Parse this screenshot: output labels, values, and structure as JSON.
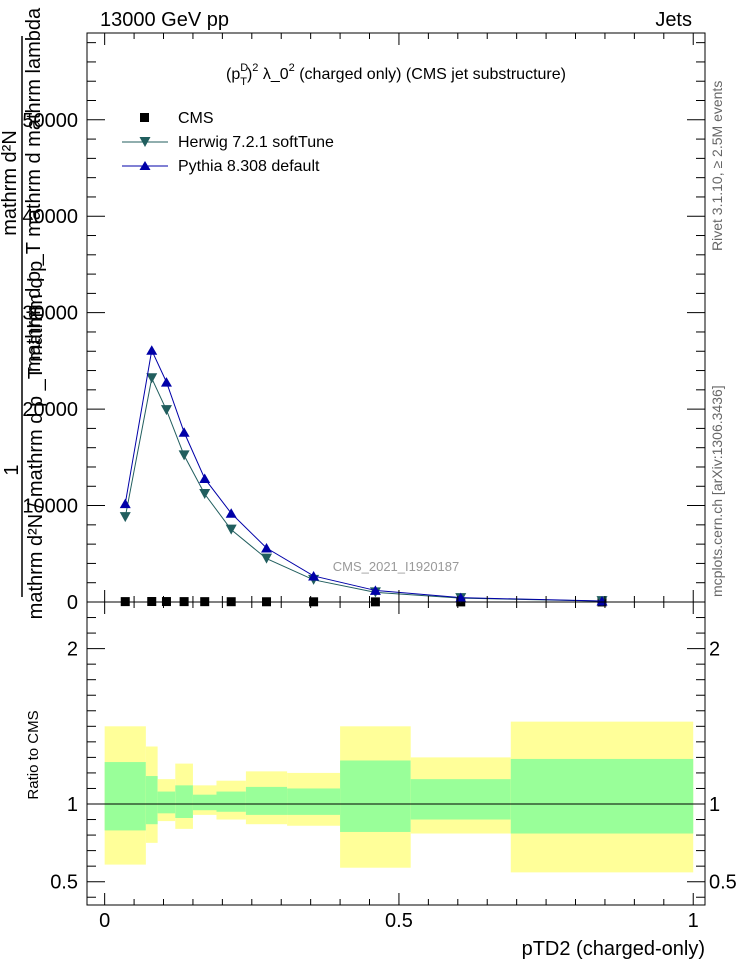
{
  "header": {
    "left": "13000 GeV pp",
    "right": "Jets"
  },
  "side_labels": {
    "rivet": "Rivet 3.1.10, ≥ 2.5M events",
    "mcplots": "mcplots.cern.ch [arXiv:1306.3436]"
  },
  "chart_data": {
    "type": "line",
    "title": "(p_T^D)^2 λ_0^2 (charged only) (CMS jet substructure)",
    "title_parts": {
      "open": "(p",
      "sup": "D",
      "sub": "T",
      "close": ")",
      "sup2": "2",
      "lambda": " λ_0",
      "sup3": "2",
      "rest": " (charged only) (CMS jet substructure)"
    },
    "analysis_label": "CMS_2021_I1920187",
    "xlabel": "pTD2 (charged-only)",
    "ylabel": {
      "one": "1",
      "denominator": "mathrm d²N / mathrm d p _T mathrm d p",
      "numerator": "mathrm d²N",
      "numerator2": "mathrm d p _T mathrm d mathrm lambda"
    },
    "ratio_ylabel": "Ratio to CMS",
    "xlim": [
      -0.03,
      1.02
    ],
    "ylim": [
      0,
      59000
    ],
    "ratio_ylim": [
      0.35,
      2.3
    ],
    "xticks": [
      0,
      0.5,
      1
    ],
    "xtick_labels": [
      "0",
      "0.5",
      "1"
    ],
    "yticks": [
      0,
      10000,
      20000,
      30000,
      40000,
      50000
    ],
    "ytick_labels": [
      "0",
      "10000",
      "20000",
      "30000",
      "40000",
      "50000"
    ],
    "ratio_yticks": [
      0.5,
      1,
      2
    ],
    "ratio_ytick_labels": [
      "0.5",
      "1",
      "2"
    ],
    "legend": {
      "position": "top-left",
      "entries": [
        "CMS",
        "Herwig 7.2.1 softTune",
        "Pythia 8.308 default"
      ]
    },
    "series": [
      {
        "name": "CMS",
        "color": "#000000",
        "marker": "square",
        "x": [
          0.035,
          0.08,
          0.105,
          0.135,
          0.17,
          0.215,
          0.275,
          0.355,
          0.46,
          0.605,
          0.845
        ],
        "y": [
          40,
          50,
          45,
          40,
          35,
          30,
          25,
          20,
          15,
          10,
          5
        ]
      },
      {
        "name": "Herwig 7.2.1 softTune",
        "color": "#215e5e",
        "marker": "triangle-down",
        "x": [
          0.035,
          0.08,
          0.105,
          0.135,
          0.17,
          0.215,
          0.275,
          0.355,
          0.46,
          0.605,
          0.845
        ],
        "y": [
          8800,
          23200,
          19900,
          15200,
          11200,
          7500,
          4500,
          2300,
          1000,
          400,
          90
        ]
      },
      {
        "name": "Pythia 8.308 default",
        "color": "#0000a8",
        "marker": "triangle-up",
        "x": [
          0.035,
          0.08,
          0.105,
          0.135,
          0.17,
          0.215,
          0.275,
          0.355,
          0.46,
          0.605,
          0.845
        ],
        "y": [
          10200,
          26100,
          22800,
          17600,
          12800,
          9200,
          5600,
          2700,
          1200,
          450,
          100
        ]
      }
    ],
    "ratio_bands": {
      "yellow_color": "#ffff99",
      "green_color": "#99ff99",
      "bins": [
        {
          "x0": 0.0,
          "x1": 0.07,
          "y_lo": 0.61,
          "y_hi": 1.5,
          "g_lo": 0.83,
          "g_hi": 1.27
        },
        {
          "x0": 0.07,
          "x1": 0.09,
          "y_lo": 0.75,
          "y_hi": 1.37,
          "g_lo": 0.87,
          "g_hi": 1.18
        },
        {
          "x0": 0.09,
          "x1": 0.12,
          "y_lo": 0.89,
          "y_hi": 1.16,
          "g_lo": 0.94,
          "g_hi": 1.08
        },
        {
          "x0": 0.12,
          "x1": 0.15,
          "y_lo": 0.84,
          "y_hi": 1.26,
          "g_lo": 0.91,
          "g_hi": 1.12
        },
        {
          "x0": 0.15,
          "x1": 0.19,
          "y_lo": 0.93,
          "y_hi": 1.12,
          "g_lo": 0.96,
          "g_hi": 1.06
        },
        {
          "x0": 0.19,
          "x1": 0.24,
          "y_lo": 0.9,
          "y_hi": 1.15,
          "g_lo": 0.95,
          "g_hi": 1.08
        },
        {
          "x0": 0.24,
          "x1": 0.31,
          "y_lo": 0.87,
          "y_hi": 1.21,
          "g_lo": 0.93,
          "g_hi": 1.11
        },
        {
          "x0": 0.31,
          "x1": 0.4,
          "y_lo": 0.86,
          "y_hi": 1.2,
          "g_lo": 0.93,
          "g_hi": 1.1
        },
        {
          "x0": 0.4,
          "x1": 0.52,
          "y_lo": 0.59,
          "y_hi": 1.5,
          "g_lo": 0.82,
          "g_hi": 1.28
        },
        {
          "x0": 0.52,
          "x1": 0.69,
          "y_lo": 0.81,
          "y_hi": 1.3,
          "g_lo": 0.9,
          "g_hi": 1.16
        },
        {
          "x0": 0.69,
          "x1": 1.0,
          "y_lo": 0.56,
          "y_hi": 1.53,
          "g_lo": 0.81,
          "g_hi": 1.29
        }
      ]
    }
  }
}
